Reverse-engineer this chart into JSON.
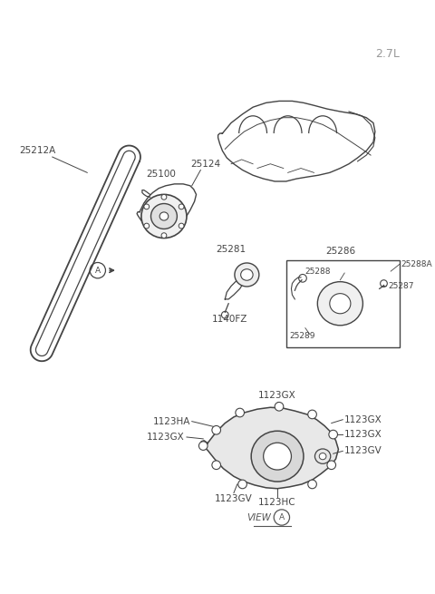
{
  "bg_color": "#ffffff",
  "line_color": "#444444",
  "label_color": "#444444",
  "version_label": "2.7L",
  "parts": {
    "belt_label": "25212A",
    "pump_label": "25100",
    "gasket_label": "25124",
    "tensioner_label": "25281",
    "bolt_label": "1140FZ",
    "box_label": "25286",
    "box_part1": "25288A",
    "box_part2": "25288",
    "box_part3": "25287",
    "box_part4": "25289",
    "view_top": "1123GX",
    "view_ha": "1123HA",
    "view_gx1": "1123GX",
    "view_gx2": "1123GX",
    "view_gx3": "1123GX",
    "view_gv1": "1123GV",
    "view_gv2": "1123GV",
    "view_hc": "1123HC",
    "circle_a_label": "A",
    "view_label": "VIEW",
    "circle_a2_label": "A"
  }
}
